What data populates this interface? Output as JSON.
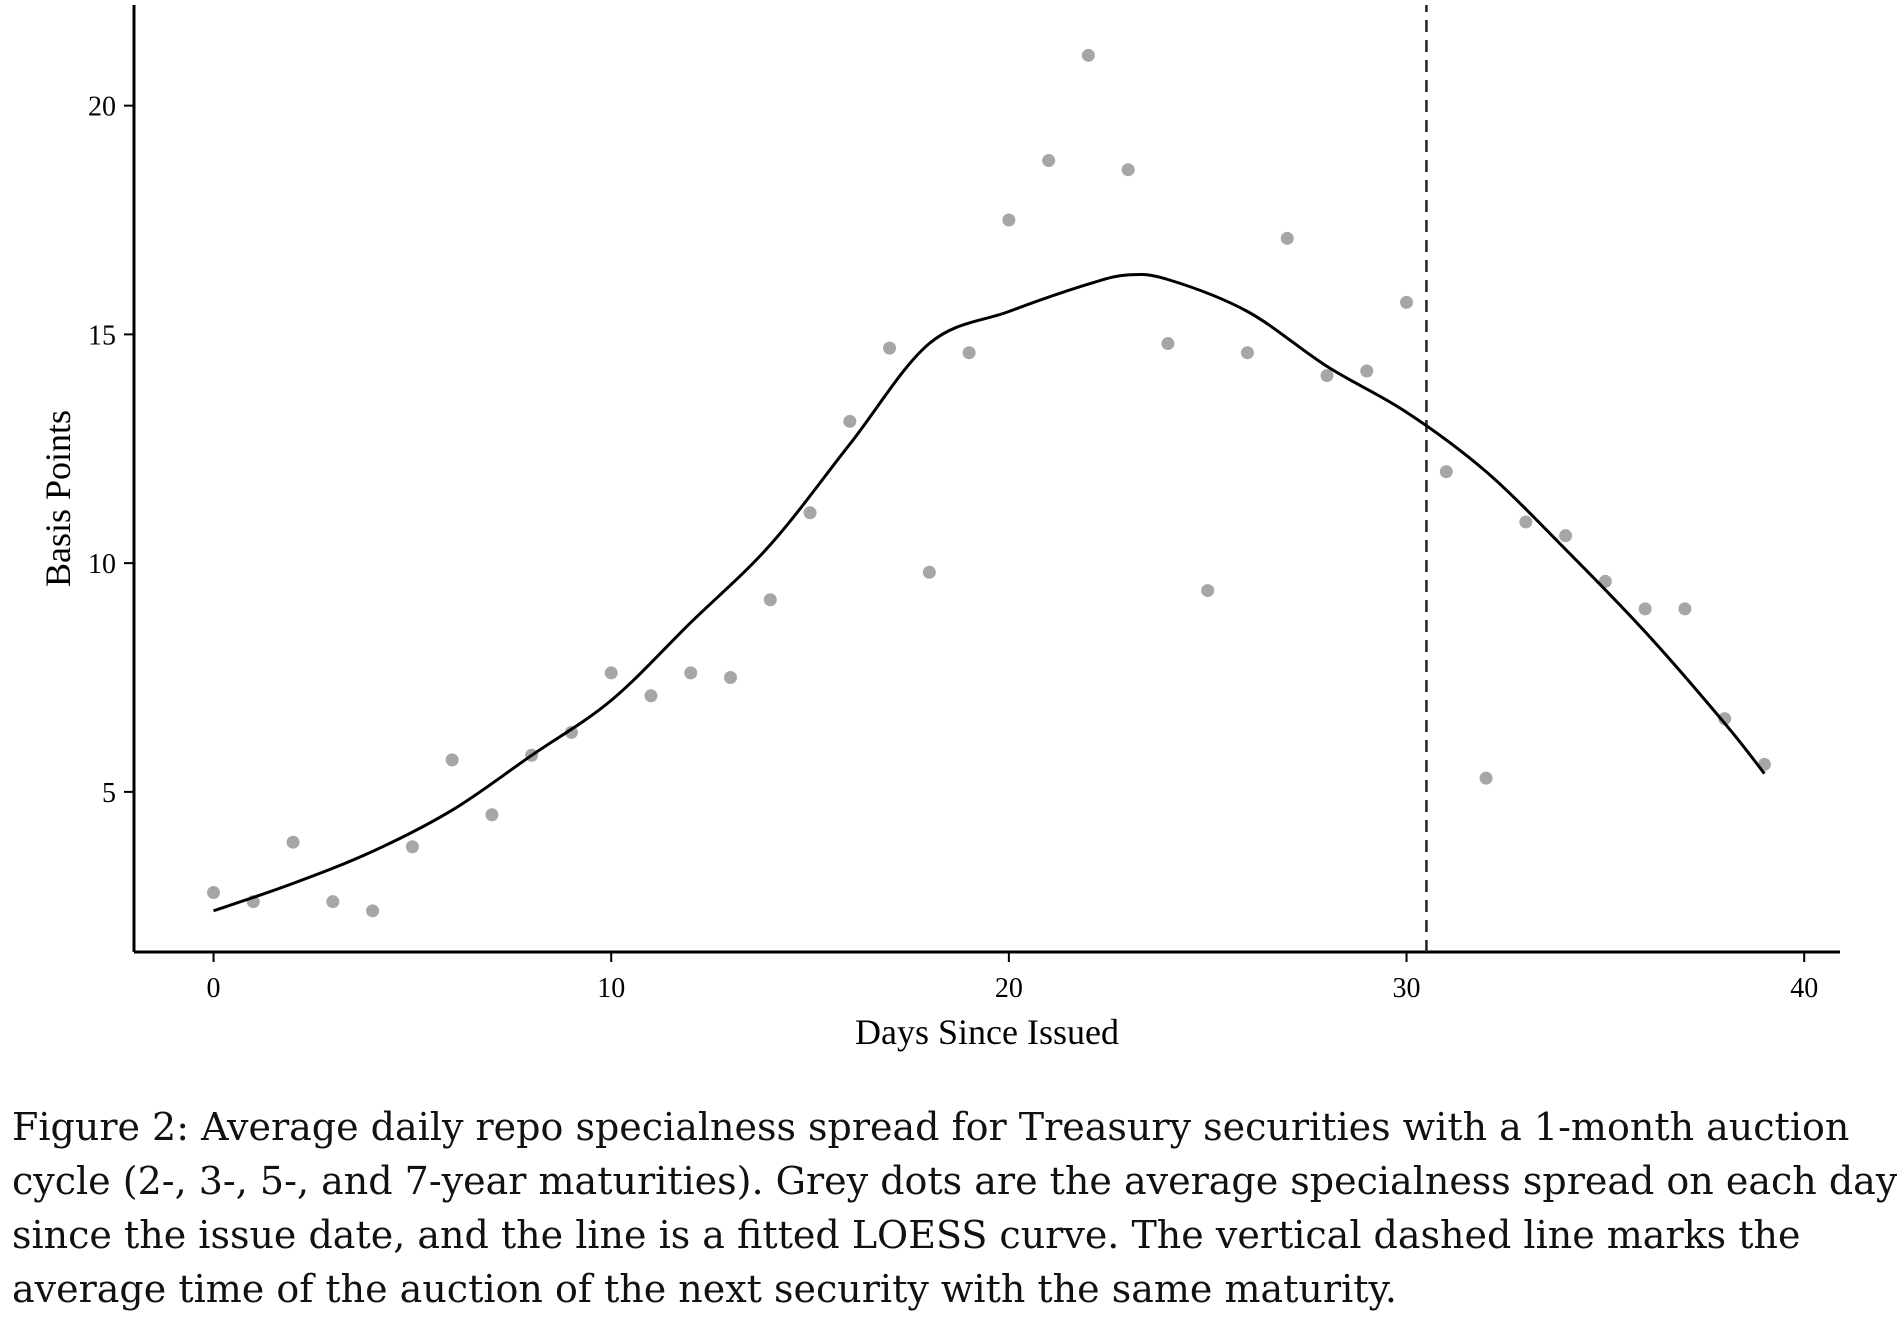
{
  "chart_data": {
    "type": "scatter",
    "xlabel": "Days Since Issued",
    "ylabel": "Basis Points",
    "xlim": [
      -2,
      40.9
    ],
    "ylim": [
      1.5,
      22.2
    ],
    "xticks": [
      0,
      10,
      20,
      30,
      40
    ],
    "yticks": [
      5,
      10,
      15,
      20
    ],
    "grid": false,
    "legend": "none",
    "points_color": "#a6a6a6",
    "line_color": "#000000",
    "series": [
      {
        "type": "scatter",
        "x": [
          0,
          1,
          2,
          3,
          4,
          5,
          6,
          7,
          8,
          9,
          10,
          11,
          12,
          13,
          14,
          15,
          16,
          17,
          18,
          19,
          20,
          21,
          22,
          23,
          24,
          25,
          26,
          27,
          28,
          29,
          30,
          31,
          32,
          33,
          34,
          35,
          36,
          37,
          38,
          39
        ],
        "y": [
          2.8,
          2.6,
          3.9,
          2.6,
          2.4,
          3.8,
          5.7,
          4.5,
          5.8,
          6.3,
          7.6,
          7.1,
          7.6,
          7.5,
          9.2,
          11.1,
          13.1,
          14.7,
          9.8,
          14.6,
          17.5,
          18.8,
          21.1,
          18.6,
          14.8,
          9.4,
          14.6,
          17.1,
          14.1,
          14.2,
          15.7,
          12.0,
          5.3,
          10.9,
          10.6,
          9.6,
          9.0,
          9.0,
          6.6,
          5.6
        ]
      },
      {
        "type": "line",
        "x": [
          0,
          2,
          4,
          6,
          8,
          10,
          12,
          14,
          16,
          18,
          20,
          22,
          23,
          24,
          26,
          28,
          30,
          32,
          34,
          36,
          38,
          39
        ],
        "y": [
          2.4,
          3.0,
          3.7,
          4.6,
          5.8,
          7.0,
          8.7,
          10.4,
          12.6,
          14.8,
          15.5,
          16.1,
          16.3,
          16.2,
          15.5,
          14.3,
          13.3,
          12.0,
          10.3,
          8.5,
          6.5,
          5.4
        ]
      }
    ],
    "vline": {
      "x": 30.5,
      "style": "dashed"
    }
  },
  "caption": {
    "lines": [
      "Figure 2:  Average daily repo specialness spread for Treasury securities with a 1-month auction",
      "cycle (2-, 3-, 5-, and 7-year maturities). Grey dots are the average specialness spread on each day",
      "since the issue date, and the line is a fitted LOESS curve.  The vertical dashed line marks the",
      "average time of the auction of the next security with the same maturity."
    ]
  }
}
